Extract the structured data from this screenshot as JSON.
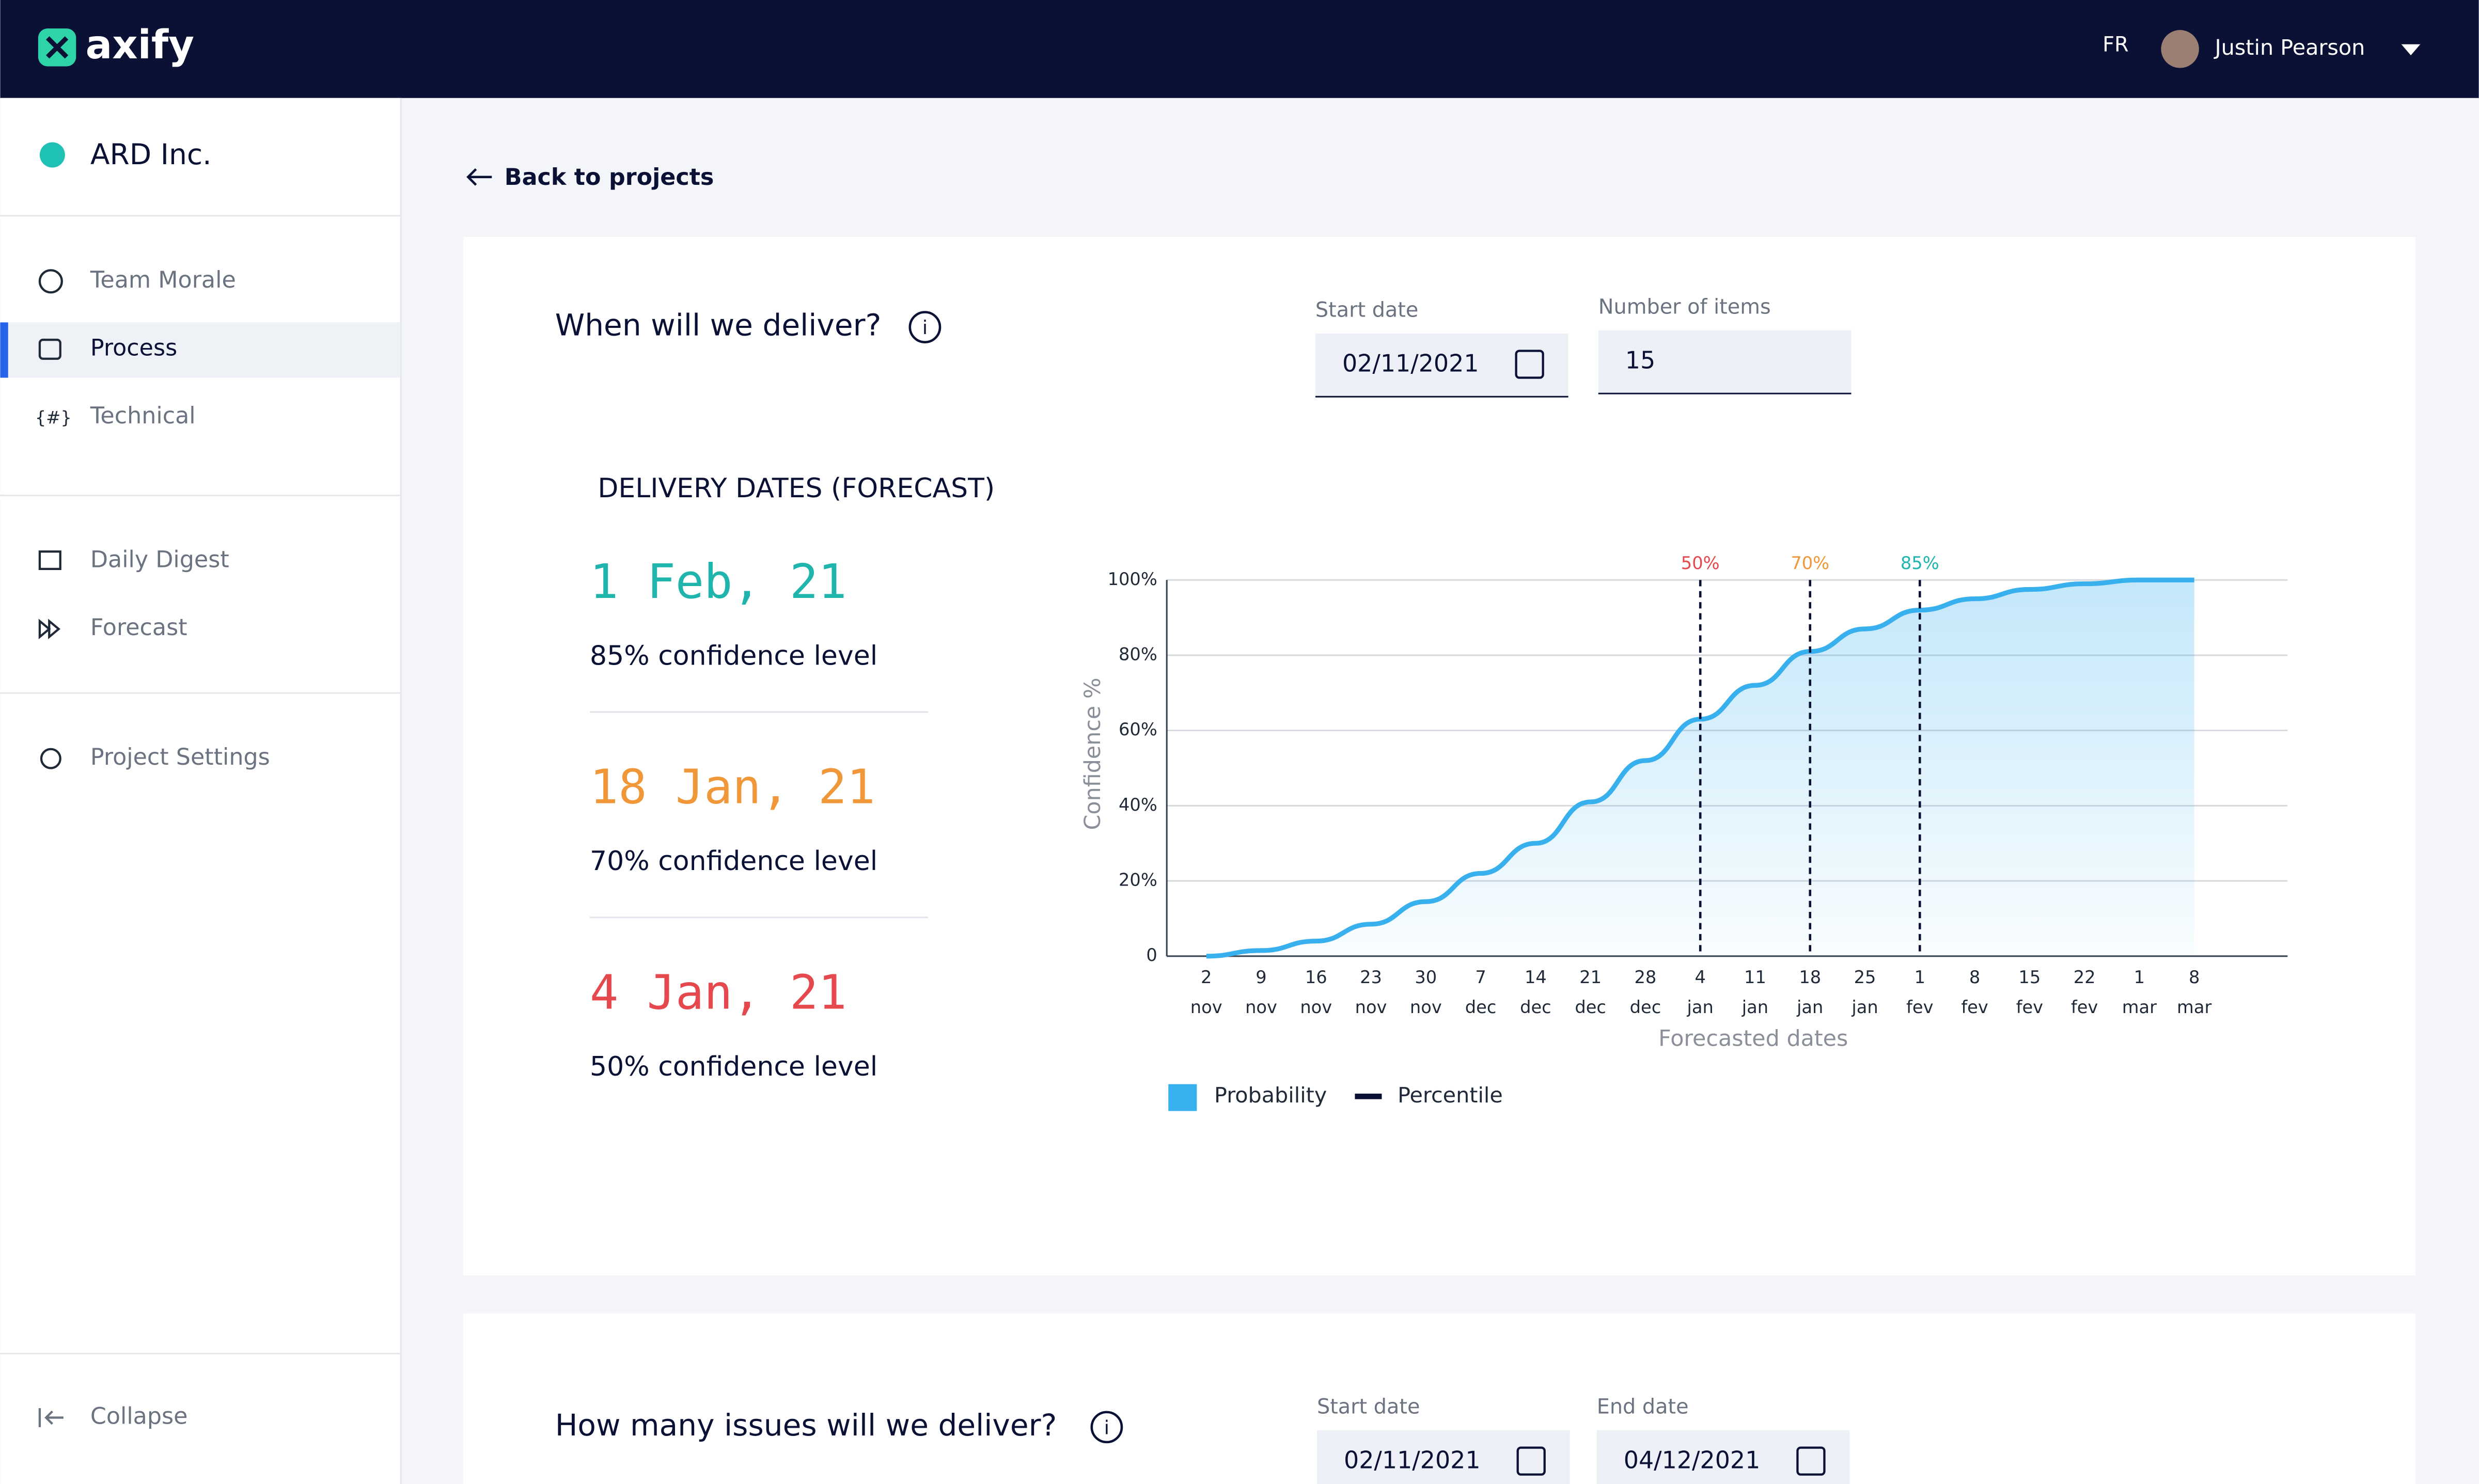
{
  "header": {
    "logo": "axify",
    "language": "FR",
    "user": "Justin Pearson"
  },
  "sidebar": {
    "org": "ARD Inc.",
    "items": [
      "Team Morale",
      "Process",
      "Technical",
      "Daily Digest",
      "Forecast",
      "Project Settings"
    ],
    "active": "Process",
    "collapse": "Collapse"
  },
  "page": {
    "back": "Back to projects",
    "forecast": {
      "title": "When will we deliver?",
      "start_label": "Start date",
      "start_value": "02/11/2021",
      "items_label": "Number of items",
      "items_value": "15",
      "section": "DELIVERY DATES (FORECAST)",
      "results": [
        {
          "date": "1 Feb, 21",
          "caption": "85% confidence level",
          "color": "#1fb5ad"
        },
        {
          "date": "18 Jan, 21",
          "caption": "70% confidence level",
          "color": "#f0973a"
        },
        {
          "date": "4 Jan, 21",
          "caption": "50% confidence level",
          "color": "#e5484d"
        }
      ]
    },
    "issues": {
      "title": "How many issues will we deliver?",
      "start_label": "Start date",
      "start_value": "02/11/2021",
      "end_label": "End date",
      "end_value": "04/12/2021"
    }
  },
  "chart_data": {
    "type": "area",
    "x_label": "Forecasted dates",
    "y_label": "Confidence %",
    "categories": [
      [
        "2",
        "nov"
      ],
      [
        "9",
        "nov"
      ],
      [
        "16",
        "nov"
      ],
      [
        "23",
        "nov"
      ],
      [
        "30",
        "nov"
      ],
      [
        "7",
        "dec"
      ],
      [
        "14",
        "dec"
      ],
      [
        "21",
        "dec"
      ],
      [
        "28",
        "dec"
      ],
      [
        "4",
        "jan"
      ],
      [
        "11",
        "jan"
      ],
      [
        "18",
        "jan"
      ],
      [
        "25",
        "jan"
      ],
      [
        "1",
        "fev"
      ],
      [
        "8",
        "fev"
      ],
      [
        "15",
        "fev"
      ],
      [
        "22",
        "fev"
      ],
      [
        "1",
        "mar"
      ],
      [
        "8",
        "mar"
      ]
    ],
    "series": [
      {
        "name": "Probability",
        "color": "#38b0ee",
        "values": [
          0,
          1.5,
          4,
          8.5,
          14.5,
          22,
          30,
          41,
          52,
          63,
          72,
          81,
          87,
          92,
          95,
          97.5,
          99,
          100,
          100
        ]
      }
    ],
    "percentiles": {
      "name": "Percentile",
      "color": "#0a1135",
      "lines": [
        {
          "label": "50%",
          "at": [
            "4",
            "jan"
          ],
          "color": "#e5484d"
        },
        {
          "label": "70%",
          "at": [
            "18",
            "jan"
          ],
          "color": "#f0973a"
        },
        {
          "label": "85%",
          "at": [
            "1",
            "fev"
          ],
          "color": "#1fb5ad"
        }
      ]
    },
    "ylim": [
      0,
      100
    ],
    "yticks": [
      {
        "value": 0,
        "label": "0"
      },
      {
        "value": 20,
        "label": "20%"
      },
      {
        "value": 40,
        "label": "40%"
      },
      {
        "value": 60,
        "label": "60%"
      },
      {
        "value": 80,
        "label": "80%"
      },
      {
        "value": 100,
        "label": "100%"
      }
    ],
    "grid": true
  }
}
